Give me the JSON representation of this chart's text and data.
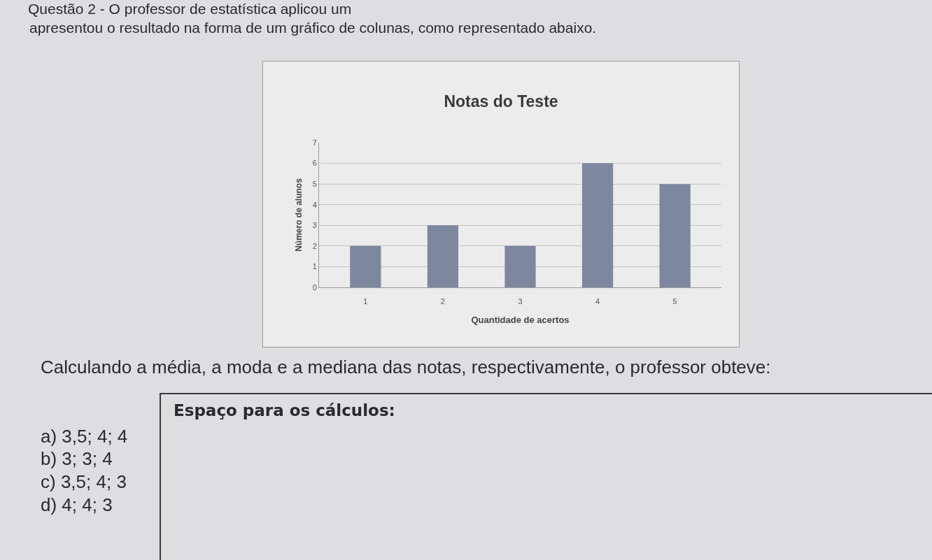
{
  "chart_data": {
    "type": "bar",
    "title": "Notas do Teste",
    "xlabel": "Quantidade de acertos",
    "ylabel": "Número de alunos",
    "categories": [
      "1",
      "2",
      "3",
      "4",
      "5"
    ],
    "values": [
      2,
      3,
      2,
      6,
      5
    ],
    "color": "#7d879e",
    "ylim": [
      0,
      7
    ],
    "yticks": [
      0,
      1,
      2,
      3,
      4,
      5,
      6,
      7
    ],
    "grid": "y",
    "annotations": [
      "Questão 2 - O professor de estatística aplicou um",
      "apresentou o resultado na forma de um gráfico de colunas, como representado abaixo.",
      "Calculando a média, a moda e a mediana das notas, respectivamente, o professor obteve:",
      "Espaço para os cálculos:",
      "a) 3,5; 4; 4",
      "b) 3; 3; 4",
      "c) 3,5; 4; 3",
      "d) 4; 4; 3"
    ]
  }
}
